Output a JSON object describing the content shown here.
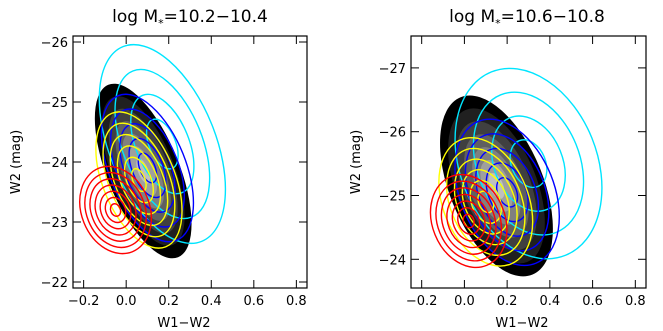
{
  "chart_data": [
    {
      "type": "contour",
      "title": "log M",
      "title_sub": "*",
      "title_range": "=10.2−10.4",
      "xlabel": "W1−W2",
      "ylabel": "W2 (mag)",
      "xlim": [
        -0.25,
        0.85
      ],
      "ylim": [
        -21.9,
        -26.1
      ],
      "xticks": [
        -0.2,
        0.0,
        0.2,
        0.4,
        0.6,
        0.8
      ],
      "xtick_labels": [
        "−0.2",
        "0.0",
        "0.2",
        "0.4",
        "0.6",
        "0.8"
      ],
      "yticks": [
        -22,
        -23,
        -24,
        -25,
        -26
      ],
      "ytick_labels": [
        "−22",
        "−23",
        "−24",
        "−25",
        "−26"
      ],
      "series": [
        {
          "color": "#000000",
          "center": [
            0.08,
            -23.85
          ],
          "extent": [
            0.17,
            1.55
          ],
          "levels": 7,
          "filled": true
        },
        {
          "color": "#00e5ff",
          "center": [
            0.17,
            -24.3
          ],
          "extent": [
            0.25,
            1.75
          ],
          "levels": 4,
          "filled": false
        },
        {
          "color": "#0000ff",
          "center": [
            0.1,
            -23.9
          ],
          "extent": [
            0.18,
            1.3
          ],
          "levels": 5,
          "filled": false
        },
        {
          "color": "#ffff00",
          "center": [
            0.06,
            -23.7
          ],
          "extent": [
            0.17,
            1.2
          ],
          "levels": 6,
          "filled": false
        },
        {
          "color": "#ff0000",
          "center": [
            -0.05,
            -23.2
          ],
          "extent": [
            0.16,
            0.75
          ],
          "levels": 7,
          "filled": false
        }
      ]
    },
    {
      "type": "contour",
      "title": "log M",
      "title_sub": "*",
      "title_range": "=10.6−10.8",
      "xlabel": "W1−W2",
      "ylabel": "W2 (mag)",
      "xlim": [
        -0.25,
        0.85
      ],
      "ylim": [
        -23.55,
        -27.5
      ],
      "xticks": [
        -0.2,
        0.0,
        0.2,
        0.4,
        0.6,
        0.8
      ],
      "xtick_labels": [
        "−0.2",
        "0.0",
        "0.2",
        "0.4",
        "0.6",
        "0.8"
      ],
      "yticks": [
        -24,
        -25,
        -26,
        -27
      ],
      "ytick_labels": [
        "−24",
        "−25",
        "−26",
        "−27"
      ],
      "series": [
        {
          "color": "#000000",
          "center": [
            0.15,
            -25.15
          ],
          "extent": [
            0.22,
            1.5
          ],
          "levels": 7,
          "filled": true
        },
        {
          "color": "#00e5ff",
          "center": [
            0.3,
            -25.5
          ],
          "extent": [
            0.32,
            1.55
          ],
          "levels": 4,
          "filled": false
        },
        {
          "color": "#0000ff",
          "center": [
            0.2,
            -25.05
          ],
          "extent": [
            0.22,
            1.2
          ],
          "levels": 5,
          "filled": false
        },
        {
          "color": "#ffff00",
          "center": [
            0.1,
            -24.9
          ],
          "extent": [
            0.2,
            1.05
          ],
          "levels": 6,
          "filled": false
        },
        {
          "color": "#ff0000",
          "center": [
            0.02,
            -24.6
          ],
          "extent": [
            0.17,
            0.75
          ],
          "levels": 7,
          "filled": false
        }
      ]
    }
  ]
}
